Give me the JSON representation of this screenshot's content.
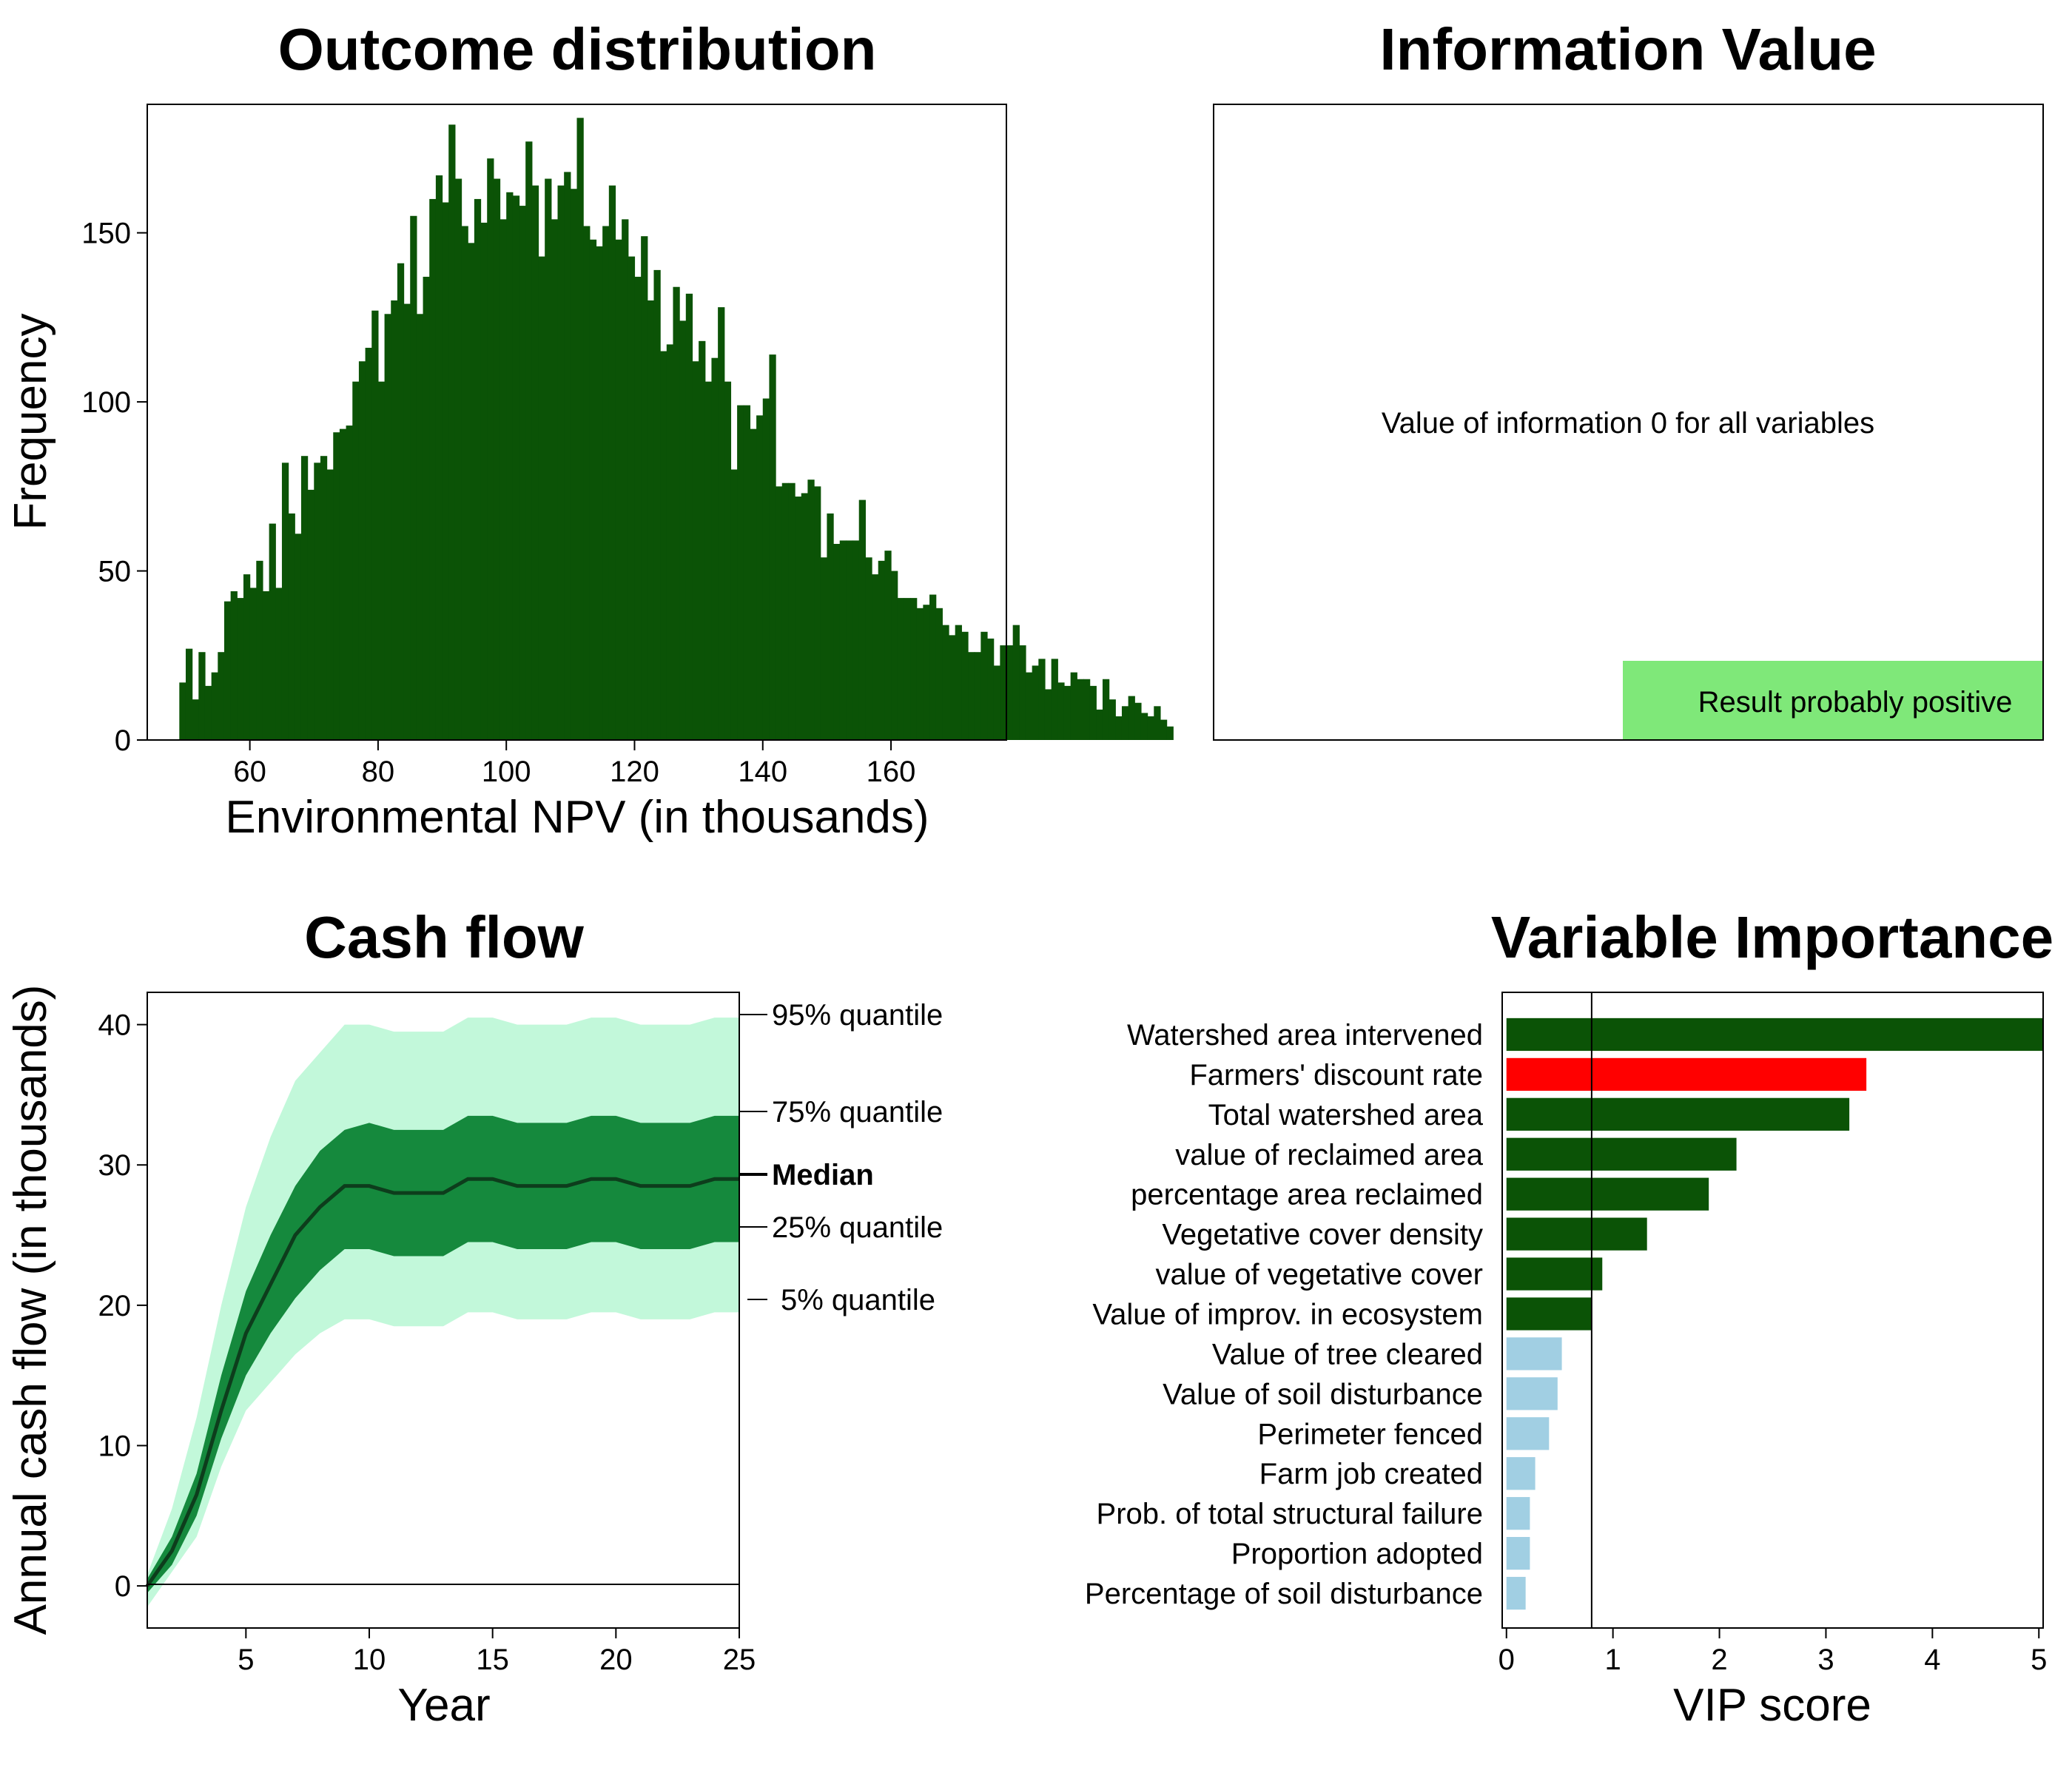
{
  "colors": {
    "dark_green": "#0b5306",
    "mid_green": "#15893d",
    "light_green": "#c2f8da",
    "bright_green": "#7fe879",
    "red": "#ff0000",
    "light_blue": "#a1cfe3",
    "black": "#000000"
  },
  "chart_data": [
    {
      "id": "histogram",
      "type": "bar",
      "title": "Outcome distribution",
      "xlabel": "Environmental NPV (in thousands)",
      "ylabel": "Frequency",
      "xlim": [
        44,
        178
      ],
      "ylim": [
        0,
        188
      ],
      "xticks": [
        "60",
        "80",
        "100",
        "120",
        "140",
        "160"
      ],
      "yticks": [
        "0",
        "50",
        "100",
        "150"
      ],
      "bin_start": 48,
      "bin_width": 1,
      "values": [
        0,
        17,
        27,
        12,
        26,
        16,
        20,
        26,
        41,
        44,
        42,
        49,
        45,
        53,
        44,
        64,
        45,
        82,
        67,
        61,
        84,
        74,
        82,
        84,
        80,
        91,
        92,
        93,
        106,
        112,
        116,
        127,
        106,
        126,
        130,
        141,
        129,
        155,
        126,
        137,
        160,
        167,
        159,
        182,
        166,
        152,
        147,
        160,
        153,
        172,
        166,
        154,
        162,
        161,
        158,
        177,
        164,
        143,
        166,
        154,
        164,
        168,
        163,
        184,
        152,
        148,
        146,
        152,
        164,
        148,
        154,
        143,
        137,
        149,
        130,
        139,
        115,
        117,
        134,
        124,
        132,
        112,
        118,
        106,
        113,
        128,
        106,
        80,
        99,
        99,
        92,
        96,
        101,
        114,
        75,
        76,
        76,
        72,
        73,
        77,
        75,
        54,
        67,
        58,
        59,
        59,
        59,
        71,
        54,
        49,
        53,
        56,
        50,
        42,
        42,
        42,
        39,
        40,
        43,
        39,
        34,
        31,
        34,
        32,
        26,
        26,
        32,
        30,
        22,
        28,
        28,
        34,
        28,
        20,
        22,
        24,
        15,
        24,
        17,
        16,
        20,
        18,
        18,
        16,
        9,
        18,
        12,
        7,
        10,
        13,
        11,
        8,
        7,
        10,
        6,
        4
      ]
    },
    {
      "id": "voi",
      "type": "table",
      "title": "Information Value",
      "message": "Value of information 0 for all variables",
      "result_label": "Result probably positive"
    },
    {
      "id": "cashflow",
      "type": "area",
      "title": "Cash flow",
      "xlabel": "Year",
      "ylabel": "Annual cash flow (in thousands)",
      "xlim": [
        1,
        25
      ],
      "ylim": [
        -3,
        42.3
      ],
      "xticks": [
        "5",
        "10",
        "15",
        "20",
        "25"
      ],
      "yticks": [
        "0",
        "10",
        "20",
        "30",
        "40"
      ],
      "x": [
        1,
        2,
        3,
        4,
        5,
        6,
        7,
        8,
        9,
        10,
        11,
        12,
        13,
        14,
        15,
        16,
        17,
        18,
        19,
        20,
        21,
        22,
        23,
        24,
        25
      ],
      "series": [
        {
          "name": "95% quantile",
          "values": [
            0.8,
            5.5,
            12,
            20,
            27,
            32,
            36,
            38,
            40,
            40,
            39.5,
            39.5,
            39.5,
            40.5,
            40.5,
            40,
            40,
            40,
            40.5,
            40.5,
            40,
            40,
            40,
            40.5,
            40.5
          ]
        },
        {
          "name": "75% quantile",
          "values": [
            0.5,
            3.5,
            8,
            15,
            21,
            25,
            28.5,
            31,
            32.5,
            33,
            32.5,
            32.5,
            32.5,
            33.5,
            33.5,
            33,
            33,
            33,
            33.5,
            33.5,
            33,
            33,
            33,
            33.5,
            33.5
          ]
        },
        {
          "name": "Median",
          "values": [
            0,
            2.5,
            6.5,
            12.5,
            18,
            21.5,
            25,
            27,
            28.5,
            28.5,
            28,
            28,
            28,
            29,
            29,
            28.5,
            28.5,
            28.5,
            29,
            29,
            28.5,
            28.5,
            28.5,
            29,
            29
          ]
        },
        {
          "name": "25% quantile",
          "values": [
            -0.5,
            1.5,
            5,
            10.5,
            15,
            18,
            20.5,
            22.5,
            24,
            24,
            23.5,
            23.5,
            23.5,
            24.5,
            24.5,
            24,
            24,
            24,
            24.5,
            24.5,
            24,
            24,
            24,
            24.5,
            24.5
          ]
        },
        {
          "name": "5% quantile",
          "values": [
            -1.5,
            1,
            3.5,
            8.5,
            12.5,
            14.5,
            16.5,
            18,
            19,
            19,
            18.5,
            18.5,
            18.5,
            19.5,
            19.5,
            19,
            19,
            19,
            19.5,
            19.5,
            19,
            19,
            19,
            19.5,
            19.5
          ]
        }
      ],
      "quantile_labels": {
        "q95": "95% quantile",
        "q75": "75% quantile",
        "median": "Median",
        "q25": "25% quantile",
        "q05": "5% quantile"
      }
    },
    {
      "id": "vip",
      "type": "bar",
      "title": "Variable Importance",
      "xlabel": "VIP score",
      "xlim": [
        -0.04,
        5.04
      ],
      "xticks": [
        "0",
        "1",
        "2",
        "3",
        "4",
        "5"
      ],
      "threshold": 0.8,
      "categories": [
        "Watershed area intervened",
        "Farmers' discount rate",
        "Total watershed area",
        "value of reclaimed area",
        "percentage area reclaimed",
        "Vegetative cover density",
        "value of vegetative cover",
        "Value of improv. in ecosystem",
        "Value of tree cleared",
        "Value of soil disturbance",
        "Perimeter fenced",
        "Farm job created",
        "Prob. of total structural failure",
        "Proportion adopted",
        "Percentage of soil disturbance"
      ],
      "values": [
        5.04,
        3.38,
        3.22,
        2.16,
        1.9,
        1.32,
        0.9,
        0.8,
        0.52,
        0.48,
        0.4,
        0.27,
        0.22,
        0.22,
        0.18
      ],
      "colors": [
        "dark_green",
        "red",
        "dark_green",
        "dark_green",
        "dark_green",
        "dark_green",
        "dark_green",
        "dark_green",
        "light_blue",
        "light_blue",
        "light_blue",
        "light_blue",
        "light_blue",
        "light_blue",
        "light_blue"
      ]
    }
  ]
}
